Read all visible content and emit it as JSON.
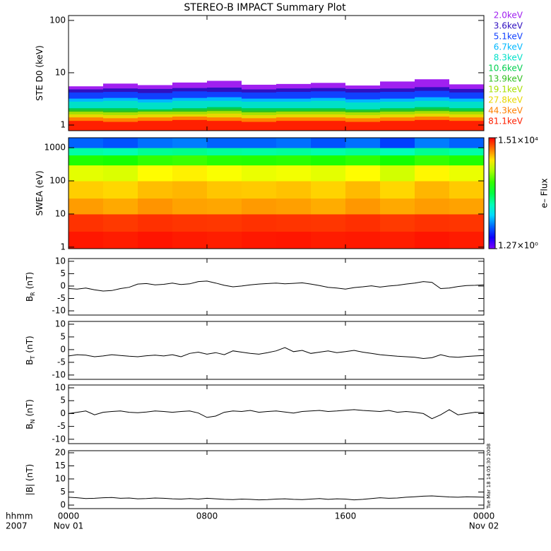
{
  "timestamp": "Tue Mar 18 14:05:30 2008",
  "chart_data": [
    {
      "type": "bar",
      "title": "STEREO-B IMPACT Summary Plot",
      "ylabel": "STE D0 (keV)",
      "log": true,
      "xlim": [
        0,
        24
      ],
      "xticks": [
        0,
        8,
        16,
        24
      ],
      "ylim": [
        0.78,
        124
      ],
      "yticks": [
        1,
        10,
        100
      ],
      "x_edges": [
        0,
        2,
        4,
        6,
        8,
        10,
        12,
        14,
        16,
        18,
        20,
        22,
        24
      ],
      "series": [
        {
          "name": "2.0keV",
          "color": "#a020f0",
          "values": [
            5.5,
            6.2,
            5.8,
            6.5,
            7,
            5.9,
            6.1,
            6.4,
            5.7,
            6.8,
            7.5,
            6
          ]
        },
        {
          "name": "3.6keV",
          "color": "#3010c0",
          "values": [
            4.8,
            5,
            4.9,
            5.1,
            5.2,
            4.8,
            5,
            5.1,
            4.9,
            5,
            5.3,
            4.9
          ]
        },
        {
          "name": "5.1keV",
          "color": "#1040ff",
          "values": [
            4.2,
            4.3,
            4.1,
            4.4,
            4.3,
            4.2,
            4.3,
            4.4,
            4.2,
            4.3,
            4.5,
            4.2
          ]
        },
        {
          "name": "6.7keV",
          "color": "#00b8ff",
          "values": [
            3.2,
            3.3,
            3.1,
            3.3,
            3.4,
            3.2,
            3.2,
            3.3,
            3.1,
            3.2,
            3.4,
            3.2
          ]
        },
        {
          "name": "8.3keV",
          "color": "#00e0c8",
          "values": [
            2.8,
            2.9,
            2.7,
            2.9,
            2.9,
            2.8,
            2.8,
            2.9,
            2.7,
            2.8,
            2.9,
            2.8
          ]
        },
        {
          "name": "10.6keV",
          "color": "#00d050",
          "values": [
            2.1,
            2.1,
            2,
            2.1,
            2.2,
            2.1,
            2.1,
            2.1,
            2,
            2.1,
            2.2,
            2.1
          ]
        },
        {
          "name": "13.9keV",
          "color": "#30c020",
          "values": [
            1.95,
            1.9,
            1.9,
            1.95,
            2,
            1.9,
            1.9,
            1.95,
            1.9,
            1.95,
            2,
            1.9
          ]
        },
        {
          "name": "19.1keV",
          "color": "#a8e000",
          "values": [
            1.8,
            1.75,
            1.8,
            1.8,
            1.85,
            1.75,
            1.8,
            1.8,
            1.75,
            1.8,
            1.85,
            1.8
          ]
        },
        {
          "name": "27.8keV",
          "color": "#e8d800",
          "values": [
            1.6,
            1.55,
            1.6,
            1.6,
            1.65,
            1.55,
            1.6,
            1.6,
            1.55,
            1.6,
            1.65,
            1.6
          ]
        },
        {
          "name": "44.3keV",
          "color": "#ff8000",
          "values": [
            1.4,
            1.35,
            1.4,
            1.45,
            1.4,
            1.35,
            1.4,
            1.4,
            1.35,
            1.4,
            1.45,
            1.4
          ]
        },
        {
          "name": "81.1keV",
          "color": "#ff2000",
          "values": [
            1.2,
            1.15,
            1.2,
            1.25,
            1.2,
            1.15,
            1.2,
            1.2,
            1.15,
            1.2,
            1.25,
            1.2
          ]
        }
      ]
    },
    {
      "type": "heatmap",
      "ylabel": "SWEA (eV)",
      "log": true,
      "zlabel": "e– Flux",
      "xlim": [
        0,
        24
      ],
      "xticks": [
        0,
        8,
        16,
        24
      ],
      "ylim": [
        0.9,
        2000
      ],
      "yticks": [
        1,
        10,
        100,
        1000
      ],
      "zlim": [
        1.27,
        15100
      ],
      "zticks": [
        {
          "value": 1.27,
          "label": "1.27×10⁰"
        },
        {
          "value": 15100,
          "label": "1.51×10⁴"
        }
      ],
      "x_edges": [
        0,
        2,
        4,
        6,
        8,
        10,
        12,
        14,
        16,
        18,
        20,
        22,
        24
      ],
      "y_edges": [
        0.9,
        3,
        10,
        30,
        100,
        300,
        600,
        1000,
        2000
      ],
      "z": [
        [
          12500,
          12000,
          12800,
          12200,
          11800,
          12400,
          12600,
          12000,
          12300,
          11900,
          12700,
          12100
        ],
        [
          10000,
          9500,
          10200,
          9800,
          9600,
          10100,
          9900,
          9700,
          10300,
          9400,
          10000,
          9800
        ],
        [
          4200,
          3800,
          4500,
          4000,
          3900,
          4300,
          4100,
          3700,
          4400,
          3800,
          4200,
          4000
        ],
        [
          2800,
          2600,
          3200,
          3400,
          3000,
          2900,
          3100,
          2700,
          3300,
          2600,
          3400,
          2900
        ],
        [
          1500,
          1400,
          1900,
          2100,
          1800,
          1600,
          1700,
          1500,
          1900,
          1300,
          2000,
          1600
        ],
        [
          300,
          280,
          350,
          380,
          320,
          310,
          330,
          290,
          340,
          270,
          360,
          300
        ],
        [
          60,
          55,
          70,
          75,
          65,
          62,
          66,
          58,
          68,
          52,
          72,
          60
        ],
        [
          8,
          7,
          9,
          10,
          8,
          8,
          9,
          7,
          9,
          6,
          10,
          8
        ]
      ]
    },
    {
      "type": "line",
      "ylabel": "B",
      "ylabel_sub": "R",
      "ylabel_unit": "(nT)",
      "color": "#000000",
      "xlim": [
        0,
        24
      ],
      "xticks": [
        0,
        8,
        16,
        24
      ],
      "ylim": [
        -11.7,
        11.1
      ],
      "yticks": [
        -10,
        -5,
        0,
        5,
        10
      ],
      "x": [
        0,
        0.5,
        1,
        1.5,
        2,
        2.5,
        3,
        3.5,
        4,
        4.5,
        5,
        5.5,
        6,
        6.5,
        7,
        7.5,
        8,
        8.5,
        9,
        9.5,
        10,
        10.5,
        11,
        11.5,
        12,
        12.5,
        13,
        13.5,
        14,
        14.5,
        15,
        15.5,
        16,
        16.5,
        17,
        17.5,
        18,
        18.5,
        19,
        19.5,
        20,
        20.5,
        21,
        21.5,
        22,
        22.5,
        23,
        23.5,
        24
      ],
      "values": [
        -1,
        -1.2,
        -0.8,
        -1.5,
        -2,
        -1.8,
        -1,
        -0.5,
        0.8,
        1,
        0.5,
        0.7,
        1.2,
        0.6,
        0.9,
        1.8,
        2,
        1.2,
        0.3,
        -0.3,
        0,
        0.5,
        0.8,
        1,
        1.2,
        0.9,
        1.1,
        1.3,
        0.8,
        0.2,
        -0.5,
        -0.8,
        -1.2,
        -0.6,
        -0.3,
        0.1,
        -0.4,
        0,
        0.3,
        0.8,
        1.2,
        1.8,
        1.5,
        -1,
        -0.8,
        -0.2,
        0.2,
        0.3,
        0.5
      ]
    },
    {
      "type": "line",
      "ylabel": "B",
      "ylabel_sub": "T",
      "ylabel_unit": "(nT)",
      "color": "#000000",
      "xlim": [
        0,
        24
      ],
      "xticks": [
        0,
        8,
        16,
        24
      ],
      "ylim": [
        -11.7,
        11.1
      ],
      "yticks": [
        -10,
        -5,
        0,
        5,
        10
      ],
      "x": [
        0,
        0.5,
        1,
        1.5,
        2,
        2.5,
        3,
        3.5,
        4,
        4.5,
        5,
        5.5,
        6,
        6.5,
        7,
        7.5,
        8,
        8.5,
        9,
        9.5,
        10,
        10.5,
        11,
        11.5,
        12,
        12.5,
        13,
        13.5,
        14,
        14.5,
        15,
        15.5,
        16,
        16.5,
        17,
        17.5,
        18,
        18.5,
        19,
        19.5,
        20,
        20.5,
        21,
        21.5,
        22,
        22.5,
        23,
        23.5,
        24
      ],
      "values": [
        -2.5,
        -2,
        -2.2,
        -2.8,
        -2.5,
        -2,
        -2.3,
        -2.6,
        -2.8,
        -2.4,
        -2.2,
        -2.5,
        -2,
        -2.8,
        -1.5,
        -1,
        -1.8,
        -1.2,
        -2,
        -0.5,
        -1,
        -1.5,
        -1.8,
        -1.2,
        -0.5,
        0.8,
        -0.8,
        -0.3,
        -1.5,
        -1,
        -0.5,
        -1.2,
        -0.8,
        -0.3,
        -1,
        -1.5,
        -2,
        -2.3,
        -2.6,
        -2.8,
        -3,
        -3.5,
        -3.2,
        -2,
        -2.8,
        -3,
        -2.7,
        -2.5,
        -2.3
      ]
    },
    {
      "type": "line",
      "ylabel": "B",
      "ylabel_sub": "N",
      "ylabel_unit": "(nT)",
      "color": "#000000",
      "xlim": [
        0,
        24
      ],
      "xticks": [
        0,
        8,
        16,
        24
      ],
      "ylim": [
        -11.7,
        11.1
      ],
      "yticks": [
        -10,
        -5,
        0,
        5,
        10
      ],
      "x": [
        0,
        0.5,
        1,
        1.5,
        2,
        2.5,
        3,
        3.5,
        4,
        4.5,
        5,
        5.5,
        6,
        6.5,
        7,
        7.5,
        8,
        8.5,
        9,
        9.5,
        10,
        10.5,
        11,
        11.5,
        12,
        12.5,
        13,
        13.5,
        14,
        14.5,
        15,
        15.5,
        16,
        16.5,
        17,
        17.5,
        18,
        18.5,
        19,
        19.5,
        20,
        20.5,
        21,
        21.5,
        22,
        22.5,
        23,
        23.5,
        24
      ],
      "values": [
        0,
        0.5,
        1,
        -0.5,
        0.5,
        0.8,
        1,
        0.5,
        0.3,
        0.6,
        1,
        0.8,
        0.5,
        0.8,
        1,
        0.2,
        -1.5,
        -1,
        0.5,
        1,
        0.8,
        1.2,
        0.5,
        0.8,
        1,
        0.6,
        0.2,
        0.8,
        1,
        1.2,
        0.8,
        1,
        1.3,
        1.5,
        1.2,
        1,
        0.8,
        1.2,
        0.5,
        0.8,
        0.5,
        0,
        -2,
        -0.5,
        1.5,
        -0.5,
        0,
        0.5,
        0.3
      ]
    },
    {
      "type": "line",
      "ylabel": "|B| (nT)",
      "color": "#000000",
      "xlim": [
        0,
        24
      ],
      "ylim": [
        -1.35,
        20.8
      ],
      "yticks": [
        0,
        5,
        10,
        15,
        20
      ],
      "xticks": [
        {
          "value": 0,
          "label": "0000"
        },
        {
          "value": 8,
          "label": "0800"
        },
        {
          "value": 16,
          "label": "1600"
        },
        {
          "value": 24,
          "label": "0000"
        }
      ],
      "xtick_dates": [
        "Nov 01",
        null,
        null,
        "Nov 02"
      ],
      "xlabel": "hhmm",
      "xlabel_year": "2007",
      "x": [
        0,
        0.5,
        1,
        1.5,
        2,
        2.5,
        3,
        3.5,
        4,
        4.5,
        5,
        5.5,
        6,
        6.5,
        7,
        7.5,
        8,
        8.5,
        9,
        9.5,
        10,
        10.5,
        11,
        11.5,
        12,
        12.5,
        13,
        13.5,
        14,
        14.5,
        15,
        15.5,
        16,
        16.5,
        17,
        17.5,
        18,
        18.5,
        19,
        19.5,
        20,
        20.5,
        21,
        21.5,
        22,
        22.5,
        23,
        23.5,
        24
      ],
      "values": [
        3,
        2.8,
        2.5,
        2.6,
        2.8,
        2.9,
        2.6,
        2.7,
        2.4,
        2.5,
        2.7,
        2.6,
        2.4,
        2.3,
        2.5,
        2.3,
        2.6,
        2.4,
        2.2,
        2.1,
        2.3,
        2.2,
        2,
        2.1,
        2.3,
        2.4,
        2.2,
        2.1,
        2.3,
        2.5,
        2.2,
        2.4,
        2.3,
        2,
        2.2,
        2.5,
        2.8,
        2.6,
        2.7,
        3,
        3.2,
        3.4,
        3.5,
        3.3,
        3.1,
        3,
        3.2,
        3.1,
        3
      ]
    }
  ]
}
